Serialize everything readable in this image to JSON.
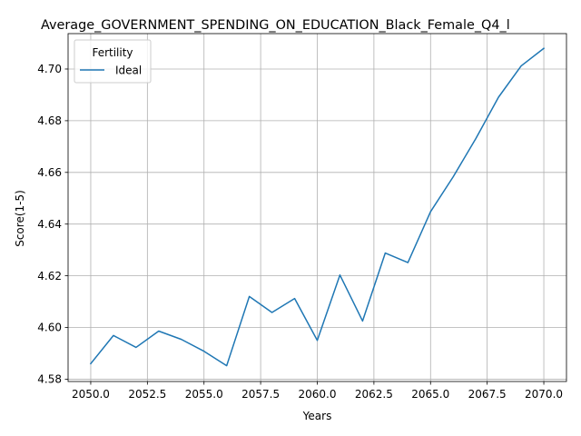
{
  "chart_data": {
    "type": "line",
    "title": "Average_GOVERNMENT_SPENDING_ON_EDUCATION_Black_Female_Q4_l",
    "xlabel": "Years",
    "ylabel": "Score(1-5)",
    "xlim": [
      2049,
      2071
    ],
    "ylim": [
      4.5791,
      4.7137
    ],
    "x_ticks": [
      2050.0,
      2052.5,
      2055.0,
      2057.5,
      2060.0,
      2062.5,
      2065.0,
      2067.5,
      2070.0
    ],
    "x_tick_labels": [
      "2050.0",
      "2052.5",
      "2055.0",
      "2057.5",
      "2060.0",
      "2062.5",
      "2065.0",
      "2067.5",
      "2070.0"
    ],
    "y_ticks": [
      4.58,
      4.6,
      4.62,
      4.64,
      4.66,
      4.68,
      4.7
    ],
    "y_tick_labels": [
      "4.58",
      "4.60",
      "4.62",
      "4.64",
      "4.66",
      "4.68",
      "4.70"
    ],
    "grid": true,
    "legend": {
      "title": "Fertility",
      "position": "top-left"
    },
    "x": [
      2050,
      2051,
      2052,
      2053,
      2054,
      2055,
      2056,
      2057,
      2058,
      2059,
      2060,
      2061,
      2062,
      2063,
      2064,
      2065,
      2066,
      2067,
      2068,
      2069,
      2070
    ],
    "series": [
      {
        "name": "Ideal",
        "color": "#1f77b4",
        "values": [
          4.586,
          4.5969,
          4.5923,
          4.5986,
          4.5954,
          4.5908,
          4.5852,
          4.612,
          4.6058,
          4.6112,
          4.595,
          4.6203,
          4.6025,
          4.6288,
          4.6251,
          4.6448,
          4.6583,
          4.6731,
          4.6891,
          4.7012,
          4.708
        ]
      }
    ]
  }
}
